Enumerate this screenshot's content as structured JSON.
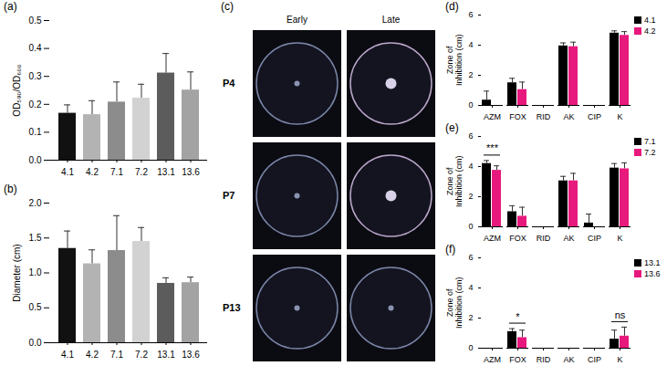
{
  "chart_data": [
    {
      "type": "bar",
      "label": "(a)",
      "ylabel": "OD₅₉₀/OD₆₀₀",
      "categories": [
        "4.1",
        "4.2",
        "7.1",
        "7.2",
        "13.1",
        "13.6"
      ],
      "values": [
        0.168,
        0.163,
        0.208,
        0.222,
        0.312,
        0.251
      ],
      "errors": [
        0.03,
        0.05,
        0.072,
        0.05,
        0.07,
        0.065
      ],
      "colors": [
        "#111111",
        "#b3b3b3",
        "#8c8c8c",
        "#d2d2d2",
        "#5c5c5c",
        "#a3a3a3"
      ],
      "ylim": [
        0,
        0.5
      ],
      "yticks": [
        {
          "value": 0,
          "label": "0.0"
        },
        0.1,
        0.2,
        0.3,
        0.4,
        0.5
      ]
    },
    {
      "type": "bar",
      "label": "(b)",
      "ylabel": "Diameter (cm)",
      "categories": [
        "4.1",
        "4.2",
        "7.1",
        "7.2",
        "13.1",
        "13.6"
      ],
      "values": [
        1.35,
        1.13,
        1.32,
        1.45,
        0.85,
        0.86
      ],
      "errors": [
        0.25,
        0.2,
        0.5,
        0.2,
        0.08,
        0.08
      ],
      "colors": [
        "#111111",
        "#b3b3b3",
        "#8c8c8c",
        "#d2d2d2",
        "#5c5c5c",
        "#a3a3a3"
      ],
      "ylim": [
        0,
        2.0
      ],
      "yticks": [
        {
          "value": 0,
          "label": "0.0"
        },
        0.5,
        {
          "value": 1,
          "label": "1.0"
        },
        1.5,
        {
          "value": 2,
          "label": "2.0"
        }
      ]
    },
    {
      "type": "image",
      "label": "(c)",
      "columns": [
        "Early",
        "Late"
      ],
      "rows": [
        "P4",
        "P7",
        "P13"
      ]
    },
    {
      "type": "grouped_bar",
      "label": "(d)",
      "ylabel": "Zone of Inhibition (cm)",
      "legend": "right",
      "categories": [
        "AZM",
        "FOX",
        "RID",
        "AK",
        "CIP",
        "K"
      ],
      "series": [
        {
          "name": "4.1",
          "color": "#000000",
          "values": [
            0.35,
            1.5,
            0,
            3.95,
            0,
            4.8
          ],
          "errors": [
            0.6,
            0.3,
            0,
            0.2,
            0,
            0.15
          ]
        },
        {
          "name": "4.2",
          "color": "#e8197d",
          "values": [
            0,
            1.05,
            0,
            3.9,
            0,
            4.65
          ],
          "errors": [
            0,
            0.5,
            0,
            0.3,
            0,
            0.25
          ]
        }
      ],
      "ylim": [
        0,
        6
      ],
      "yticks": [
        0,
        2,
        4,
        6
      ],
      "annotations": []
    },
    {
      "type": "grouped_bar",
      "label": "(e)",
      "ylabel": "Zone of Inhibition (cm)",
      "legend": "right",
      "categories": [
        "AZM",
        "FOX",
        "RID",
        "AK",
        "CIP",
        "K"
      ],
      "series": [
        {
          "name": "7.1",
          "color": "#000000",
          "values": [
            4.2,
            1.0,
            0,
            3.05,
            0.25,
            3.9
          ],
          "errors": [
            0.2,
            0.4,
            0,
            0.3,
            0.6,
            0.3
          ]
        },
        {
          "name": "7.2",
          "color": "#e8197d",
          "values": [
            3.75,
            0.7,
            0,
            3.05,
            0,
            3.85
          ],
          "errors": [
            0.3,
            0.6,
            0,
            0.5,
            0,
            0.4
          ]
        }
      ],
      "ylim": [
        0,
        6
      ],
      "yticks": [
        0,
        2,
        4,
        6
      ],
      "annotations": [
        {
          "text": "***",
          "category": "AZM"
        }
      ]
    },
    {
      "type": "grouped_bar",
      "label": "(f)",
      "ylabel": "Zone of Inhibition (cm)",
      "legend": "right",
      "categories": [
        "AZM",
        "FOX",
        "RID",
        "AK",
        "CIP",
        "K"
      ],
      "series": [
        {
          "name": "13.1",
          "color": "#000000",
          "values": [
            0,
            1.1,
            0,
            0,
            0,
            0.6
          ],
          "errors": [
            0,
            0.2,
            0,
            0,
            0,
            0.6
          ]
        },
        {
          "name": "13.6",
          "color": "#e8197d",
          "values": [
            0,
            0.7,
            0,
            0,
            0,
            0.8
          ],
          "errors": [
            0,
            0.5,
            0,
            0,
            0,
            0.6
          ]
        }
      ],
      "ylim": [
        0,
        6
      ],
      "yticks": [
        0,
        2,
        4,
        6
      ],
      "annotations": [
        {
          "text": "*",
          "category": "FOX"
        },
        {
          "text": "ns",
          "category": "K"
        }
      ]
    }
  ]
}
